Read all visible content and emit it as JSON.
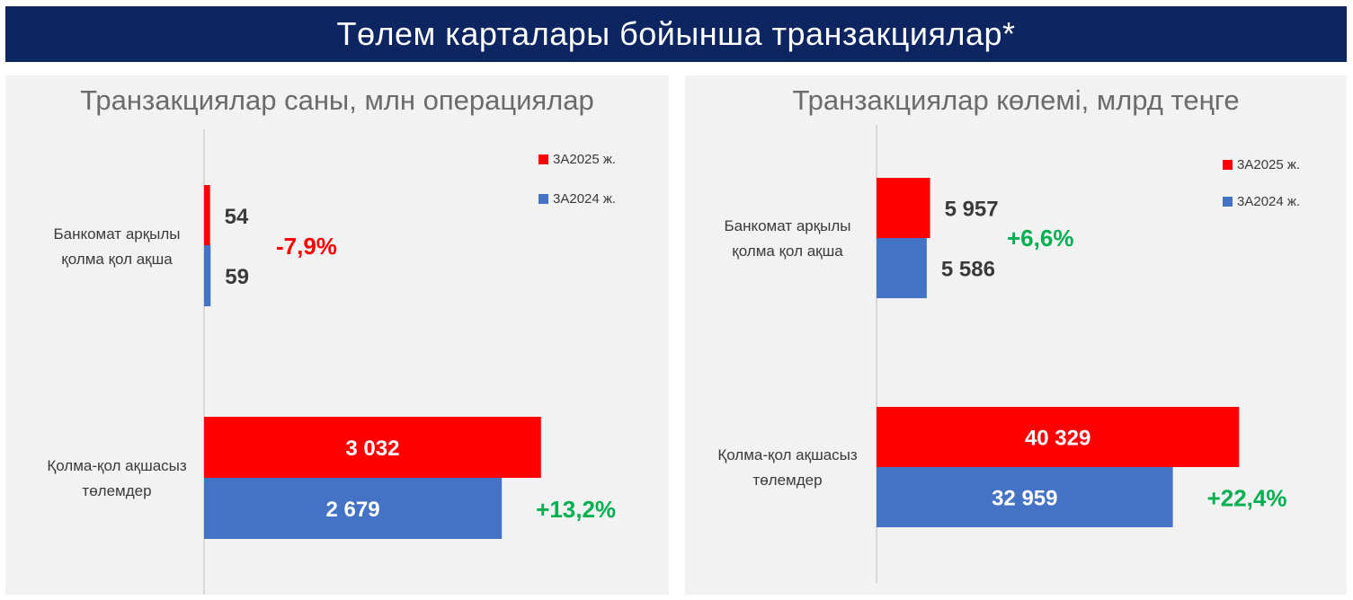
{
  "banner": {
    "title": "Төлем карталары бойынша транзакциялар*"
  },
  "colors": {
    "banner_bg": "#0d2561",
    "series_2025": "#ff0000",
    "series_2024": "#4472c4",
    "negative": "#ff0000",
    "positive": "#00b050"
  },
  "chart_data": [
    {
      "type": "bar",
      "orientation": "horizontal",
      "title": "Транзакциялар саны, млн операциялар",
      "categories": [
        "Банкомат арқылы қолма қол ақша",
        "Қолма-қол ақшасыз төлемдер"
      ],
      "category_lines": [
        [
          "Банкомат арқылы",
          "қолма қол ақша"
        ],
        [
          "Қолма-қол ақшасыз",
          "төлемдер"
        ]
      ],
      "series": [
        {
          "name": "3А2025 ж.",
          "values": [
            54,
            3032
          ],
          "labels": [
            "54",
            "3 032"
          ]
        },
        {
          "name": "3А2024 ж.",
          "values": [
            59,
            2679
          ],
          "labels": [
            "59",
            "2 679"
          ]
        }
      ],
      "changes": [
        "-7,9%",
        "+13,2%"
      ],
      "xlim": [
        0,
        3600
      ],
      "legend_position": "top-right",
      "grid": false
    },
    {
      "type": "bar",
      "orientation": "horizontal",
      "title": "Транзакциялар көлемі, млрд теңге",
      "categories": [
        "Банкомат арқылы қолма қол ақша",
        "Қолма-қол ақшасыз төлемдер"
      ],
      "category_lines": [
        [
          "Банкомат арқылы",
          "қолма қол ақша"
        ],
        [
          "Қолма-қол ақшасыз",
          "төлемдер"
        ]
      ],
      "series": [
        {
          "name": "3А2025 ж.",
          "values": [
            5957,
            40329
          ],
          "labels": [
            "5 957",
            "40 329"
          ]
        },
        {
          "name": "3А2024 ж.",
          "values": [
            5586,
            32959
          ],
          "labels": [
            "5 586",
            "32 959"
          ]
        }
      ],
      "changes": [
        "+6,6%",
        "+22,4%"
      ],
      "xlim": [
        0,
        47000
      ],
      "legend_position": "top-right",
      "grid": false
    }
  ]
}
